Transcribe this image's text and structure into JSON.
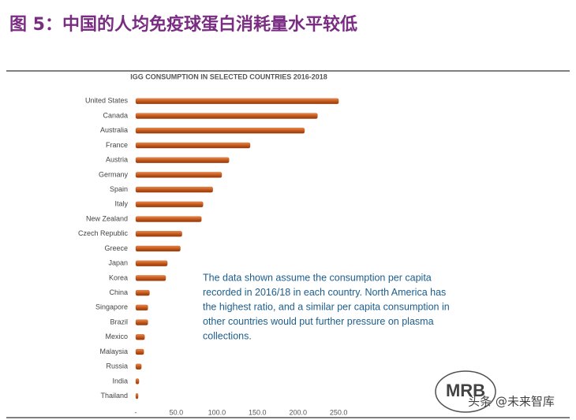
{
  "header": {
    "title": "图 5：中国的人均免疫球蛋白消耗量水平较低"
  },
  "chart_data": {
    "type": "hbar",
    "title": "IGG CONSUMPTION IN SELECTED COUNTRIES 2016-2018",
    "categories": [
      "United States",
      "Canada",
      "Australia",
      "France",
      "Austria",
      "Germany",
      "Spain",
      "Italy",
      "New Zealand",
      "Czech Republic",
      "Greece",
      "Japan",
      "Korea",
      "China",
      "Singapore",
      "Brazil",
      "Mexico",
      "Malaysia",
      "Russia",
      "India",
      "Thailand"
    ],
    "values": [
      250,
      224,
      208,
      141,
      115,
      106,
      95,
      83,
      81,
      57,
      55,
      39,
      37,
      17,
      15,
      15,
      11,
      10,
      7,
      4,
      3
    ],
    "color": "#c4581c",
    "xlim": [
      0,
      280
    ],
    "xticks": [
      {
        "value": 0,
        "label": "-"
      },
      {
        "value": 50,
        "label": "50.0"
      },
      {
        "value": 100,
        "label": "100.0"
      },
      {
        "value": 150,
        "label": "150.0"
      },
      {
        "value": 200,
        "label": "200.0"
      },
      {
        "value": 250,
        "label": "250.0"
      }
    ],
    "annotation": [
      "The data shown assume the consumption per capita",
      "recorded in 2016/18 in each country. North America has",
      "the highest ratio, and a similar per capita consumption in",
      "other countries would put further pressure on plasma",
      "collections."
    ]
  },
  "watermark": [
    "MRB",
    "头条 @未来智库"
  ]
}
